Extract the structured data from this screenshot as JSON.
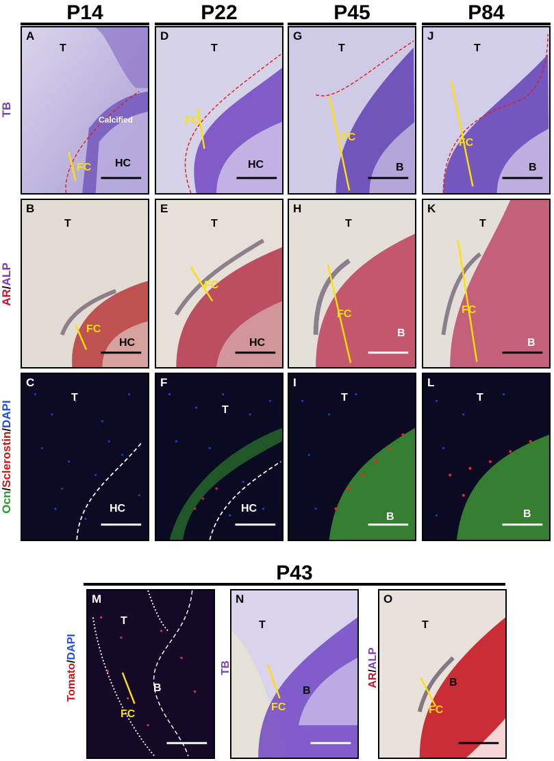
{
  "columns": [
    {
      "title": "P14"
    },
    {
      "title": "P22"
    },
    {
      "title": "P45"
    },
    {
      "title": "P84"
    }
  ],
  "rows": [
    {
      "label_parts": [
        {
          "text": "TB",
          "color": "#7a3db3"
        }
      ]
    },
    {
      "label_parts": [
        {
          "text": "AR",
          "color": "#c0152b"
        },
        {
          "text": "/",
          "color": "#000000"
        },
        {
          "text": "ALP",
          "color": "#7a3db3"
        }
      ]
    },
    {
      "label_parts": [
        {
          "text": "Ocn",
          "color": "#2a9a2a"
        },
        {
          "text": "/",
          "color": "#000000"
        },
        {
          "text": "Sclerostin",
          "color": "#d01414"
        },
        {
          "text": "/",
          "color": "#000000"
        },
        {
          "text": "DAPI",
          "color": "#2050d8"
        }
      ]
    }
  ],
  "panels": {
    "A": {
      "letter": "A",
      "t": "T",
      "fc": "FC",
      "hc": "HC",
      "note": "Calcified"
    },
    "D": {
      "letter": "D",
      "t": "T",
      "fc": "FC",
      "hc": "HC"
    },
    "G": {
      "letter": "G",
      "t": "T",
      "fc": "FC",
      "b": "B"
    },
    "J": {
      "letter": "J",
      "t": "T",
      "fc": "FC",
      "b": "B"
    },
    "B": {
      "letter": "B",
      "t": "T",
      "fc": "FC",
      "hc": "HC"
    },
    "E": {
      "letter": "E",
      "t": "T",
      "fc": "FC",
      "hc": "HC"
    },
    "H": {
      "letter": "H",
      "t": "T",
      "fc": "FC",
      "b": "B"
    },
    "K": {
      "letter": "K",
      "t": "T",
      "fc": "FC",
      "b": "B"
    },
    "C": {
      "letter": "C",
      "t": "T",
      "hc": "HC"
    },
    "F": {
      "letter": "F",
      "t": "T",
      "hc": "HC"
    },
    "I": {
      "letter": "I",
      "t": "T",
      "b": "B"
    },
    "L": {
      "letter": "L",
      "t": "T",
      "b": "B"
    },
    "M": {
      "letter": "M",
      "t": "T",
      "fc": "FC",
      "b": "B"
    },
    "N": {
      "letter": "N",
      "t": "T",
      "fc": "FC",
      "b": "B"
    },
    "O": {
      "letter": "O",
      "t": "T",
      "fc": "FC",
      "b": "B"
    }
  },
  "bottom": {
    "title": "P43",
    "label_m": [
      {
        "text": "Tomato",
        "color": "#d01414"
      },
      {
        "text": "/",
        "color": "#000000"
      },
      {
        "text": "DAPI",
        "color": "#2050d8"
      }
    ],
    "label_n": [
      {
        "text": "TB",
        "color": "#7a3db3"
      }
    ],
    "label_o": [
      {
        "text": "AR",
        "color": "#c0152b"
      },
      {
        "text": "/",
        "color": "#000000"
      },
      {
        "text": "ALP",
        "color": "#7a3db3"
      }
    ]
  },
  "colors": {
    "tb_bg": "#c9c2e3",
    "tb_dark": "#4b2aa0",
    "alp_bg": "#e4ddd6",
    "alp_red": "#b8324f",
    "fluo_bg": "#0a0a20",
    "dapi": "#2a4cff",
    "ocn": "#3fb83f",
    "scl": "#ff2020",
    "arrow": "#ffe000",
    "dashed_red": "#e02020"
  }
}
